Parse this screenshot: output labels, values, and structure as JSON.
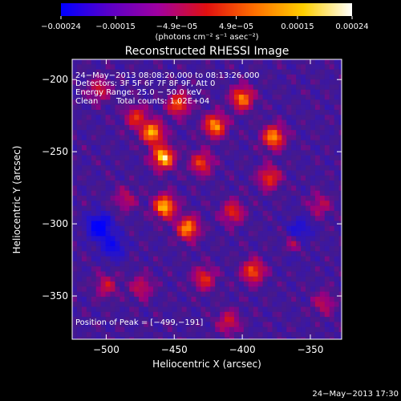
{
  "chart_data": {
    "type": "heatmap",
    "title": "Reconstructed RHESSI Image",
    "xlabel": "Heliocentric X (arcsec)",
    "ylabel": "Heliocentric Y (arcsec)",
    "xlim": [
      -525,
      -327
    ],
    "ylim": [
      -380,
      -186
    ],
    "xticks": [
      -500,
      -450,
      -400,
      -350
    ],
    "yticks": [
      -200,
      -250,
      -300,
      -350
    ],
    "xtick_labels": [
      "−500",
      "−450",
      "−400",
      "−350"
    ],
    "ytick_labels": [
      "−200",
      "−250",
      "−300",
      "−350"
    ],
    "colorbar": {
      "range": [
        -0.00024,
        0.00024
      ],
      "tick_labels": [
        "−0.00024",
        "−0.00015",
        "−4.9e−05",
        "4.9e−05",
        "0.00015",
        "0.00024"
      ],
      "ticks": [
        -0.00024,
        -0.00015,
        -4.9e-05,
        4.9e-05,
        0.00015,
        0.00024
      ],
      "units_label": "(photons cm⁻² s⁻¹ asec⁻²)",
      "colors": [
        "#0000ff",
        "#5a00c8",
        "#a000a0",
        "#e01010",
        "#ff7000",
        "#ffd000",
        "#ffffff"
      ]
    },
    "annotations": {
      "time_range": "24−May−2013 08:08:20.000 to 08:13:26.000",
      "detectors": "Detectors: 3F 5F 6F 7F 8F 9F, Att 0",
      "energy_range": "Energy Range: 25.0 − 50.0 keV",
      "method": "Clean",
      "total_counts": "Total counts: 1.02E+04",
      "peak": "Position of Peak = [−499,−191]"
    },
    "hot_sources": [
      {
        "x": -458,
        "y": -254,
        "v": 1.0
      },
      {
        "x": -466,
        "y": -237,
        "v": 0.9
      },
      {
        "x": -420,
        "y": -232,
        "v": 0.85
      },
      {
        "x": -400,
        "y": -213,
        "v": 0.8
      },
      {
        "x": -377,
        "y": -240,
        "v": 0.85
      },
      {
        "x": -457,
        "y": -288,
        "v": 0.95
      },
      {
        "x": -440,
        "y": -303,
        "v": 0.85
      },
      {
        "x": -447,
        "y": -217,
        "v": 0.7
      },
      {
        "x": -430,
        "y": -258,
        "v": 0.6
      },
      {
        "x": -380,
        "y": -268,
        "v": 0.6
      },
      {
        "x": -407,
        "y": -292,
        "v": 0.55
      },
      {
        "x": -392,
        "y": -333,
        "v": 0.7
      },
      {
        "x": -362,
        "y": -315,
        "v": 0.6
      },
      {
        "x": -428,
        "y": -338,
        "v": 0.55
      },
      {
        "x": -478,
        "y": -226,
        "v": 0.55
      },
      {
        "x": -505,
        "y": -207,
        "v": 0.45
      },
      {
        "x": -486,
        "y": -283,
        "v": 0.35
      },
      {
        "x": -474,
        "y": -344,
        "v": 0.4
      },
      {
        "x": -410,
        "y": -368,
        "v": 0.45
      },
      {
        "x": -500,
        "y": -343,
        "v": 0.4
      },
      {
        "x": -343,
        "y": -287,
        "v": 0.35
      },
      {
        "x": -340,
        "y": -355,
        "v": 0.35
      }
    ],
    "cold_sources": [
      {
        "x": -505,
        "y": -302,
        "v": 1.0
      },
      {
        "x": -495,
        "y": -316,
        "v": 0.6
      },
      {
        "x": -358,
        "y": -305,
        "v": 0.55
      },
      {
        "x": -362,
        "y": -318,
        "v": 0.45
      }
    ]
  },
  "footer": {
    "timestamp": "24−May−2013 17:30"
  }
}
